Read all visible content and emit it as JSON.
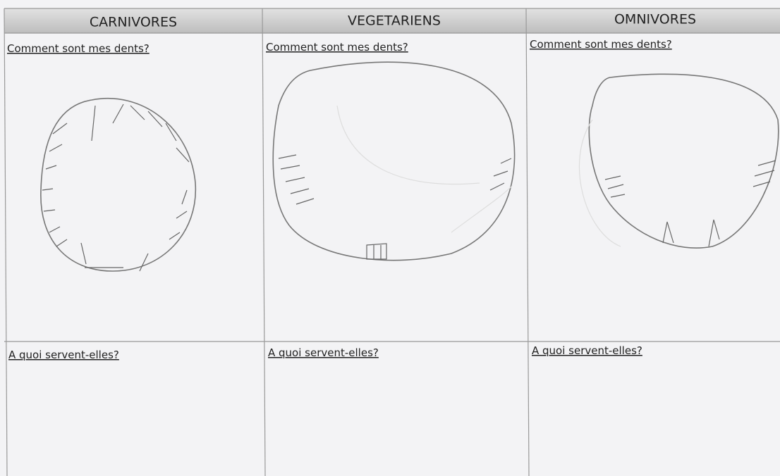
{
  "table": {
    "headers": [
      "CARNIVORES",
      "VEGETARIENS",
      "OMNIVORES"
    ],
    "rows": [
      [
        "Comment sont mes dents?",
        "Comment sont mes dents?",
        "Comment sont mes dents?"
      ],
      [
        "A quoi servent-elles?",
        "A quoi servent-elles?",
        "A quoi servent-elles?"
      ]
    ]
  }
}
